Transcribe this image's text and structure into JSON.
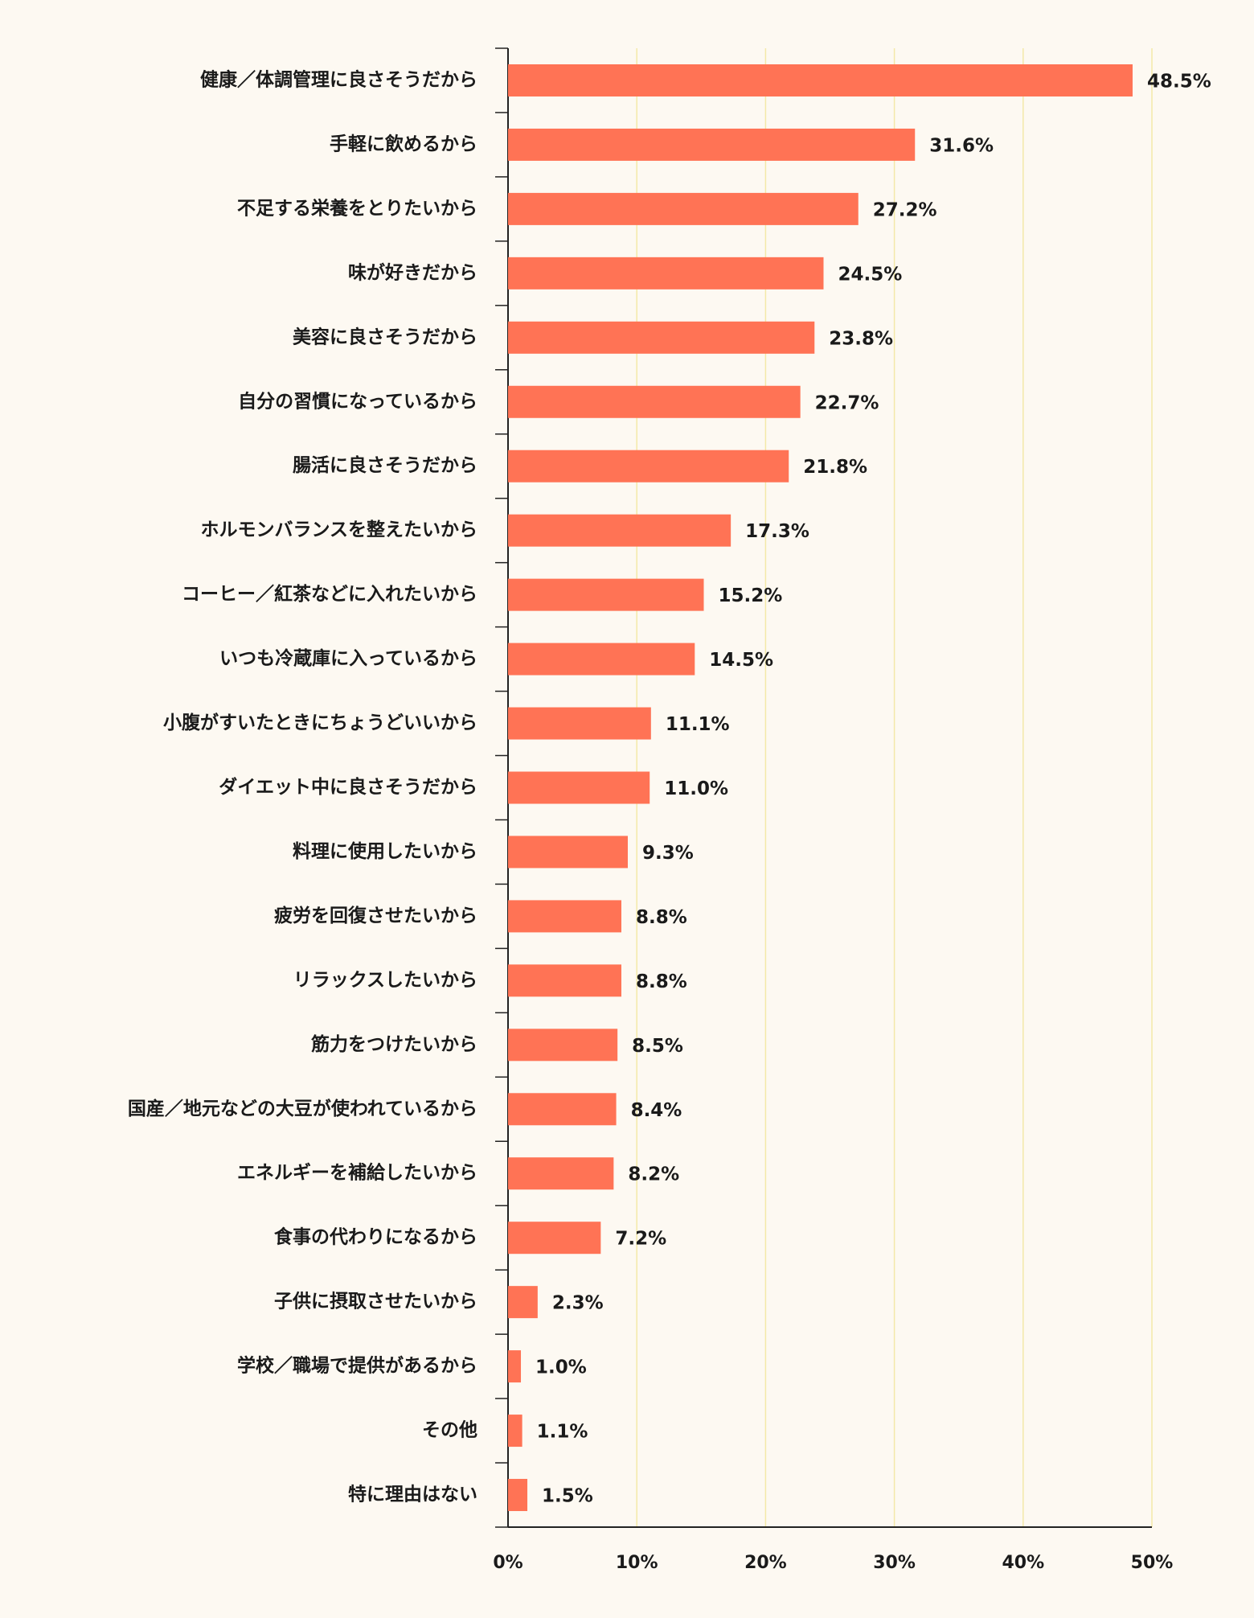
{
  "chart_data": {
    "type": "barh",
    "categories": [
      "健康／体調管理に良さそうだから",
      "手軽に飲めるから",
      "不足する栄養をとりたいから",
      "味が好きだから",
      "美容に良さそうだから",
      "自分の習慣になっているから",
      "腸活に良さそうだから",
      "ホルモンバランスを整えたいから",
      "コーヒー／紅茶などに入れたいから",
      "いつも冷蔵庫に入っているから",
      "小腹がすいたときにちょうどいいから",
      "ダイエット中に良さそうだから",
      "料理に使用したいから",
      "疲労を回復させたいから",
      "リラックスしたいから",
      "筋力をつけたいから",
      "国産／地元などの大豆が使われているから",
      "エネルギーを補給したいから",
      "食事の代わりになるから",
      "子供に摂取させたいから",
      "学校／職場で提供があるから",
      "その他",
      "特に理由はない"
    ],
    "values": [
      48.5,
      31.6,
      27.2,
      24.5,
      23.8,
      22.7,
      21.8,
      17.3,
      15.2,
      14.5,
      11.1,
      11.0,
      9.3,
      8.8,
      8.8,
      8.5,
      8.4,
      8.2,
      7.2,
      2.3,
      1.0,
      1.1,
      1.5
    ],
    "value_labels": [
      "48.5%",
      "31.6%",
      "27.2%",
      "24.5%",
      "23.8%",
      "22.7%",
      "21.8%",
      "17.3%",
      "15.2%",
      "14.5%",
      "11.1%",
      "11.0%",
      "9.3%",
      "8.8%",
      "8.8%",
      "8.5%",
      "8.4%",
      "8.2%",
      "7.2%",
      "2.3%",
      "1.0%",
      "1.1%",
      "1.5%"
    ],
    "color": "#ff7355",
    "xlim": [
      0,
      50
    ],
    "xticks": [
      {
        "value": 0,
        "label": "0%"
      },
      {
        "value": 10,
        "label": "10%"
      },
      {
        "value": 20,
        "label": "20%"
      },
      {
        "value": 30,
        "label": "30%"
      },
      {
        "value": 40,
        "label": "40%"
      },
      {
        "value": 50,
        "label": "50%"
      }
    ],
    "grid": true
  }
}
